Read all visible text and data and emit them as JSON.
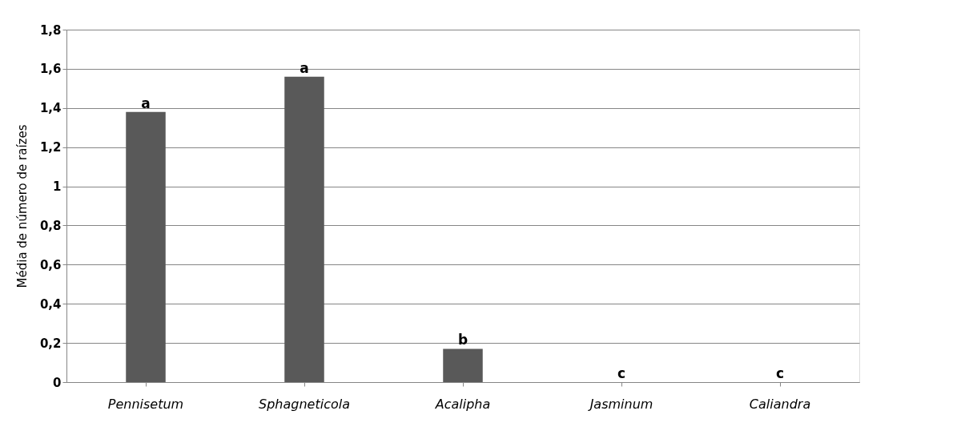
{
  "chart_data": {
    "type": "bar",
    "ylabel": "Média de número de raízes",
    "categories": [
      "Pennisetum",
      "Sphagneticola",
      "Acalipha",
      "Jasminum",
      "Caliandra"
    ],
    "values": [
      1.38,
      1.56,
      0.17,
      0,
      0
    ],
    "color": "#595959",
    "ylim": [
      0,
      1.8
    ],
    "yticks": [
      0,
      {
        "value": 0.2,
        "label": "0,2"
      },
      {
        "value": 0.4,
        "label": "0,4"
      },
      {
        "value": 0.6,
        "label": "0,6"
      },
      {
        "value": 0.8,
        "label": "0,8"
      },
      1,
      {
        "value": 1.2,
        "label": "1,2"
      },
      {
        "value": 1.4,
        "label": "1,4"
      },
      {
        "value": 1.6,
        "label": "1,6"
      },
      {
        "value": 1.8,
        "label": "1,8"
      }
    ],
    "grid": "y",
    "annotations": [
      {
        "text": "a",
        "x": "Pennisetum",
        "y": 1.38
      },
      {
        "text": "a",
        "x": "Sphagneticola",
        "y": 1.56
      },
      {
        "text": "b",
        "x": "Acalipha",
        "y": 0.17
      },
      {
        "text": "c",
        "x": "Jasminum",
        "y": 0
      },
      {
        "text": "c",
        "x": "Caliandra",
        "y": 0
      }
    ]
  }
}
